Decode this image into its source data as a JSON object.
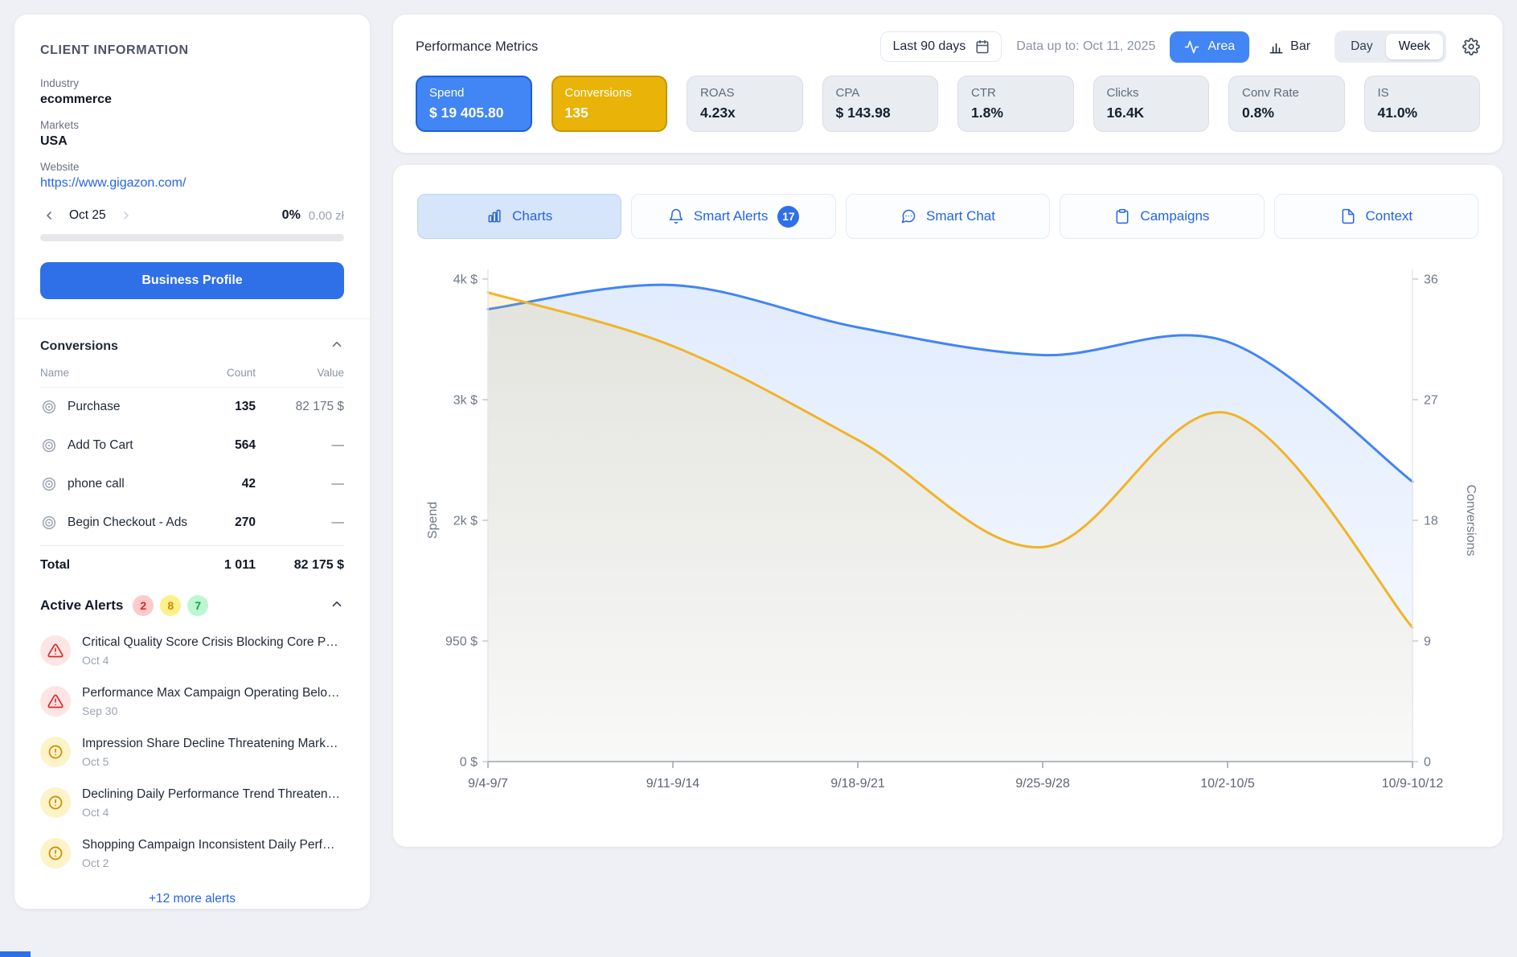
{
  "sidebar": {
    "title": "CLIENT INFORMATION",
    "fields": [
      {
        "label": "Industry",
        "value": "ecommerce",
        "link": false
      },
      {
        "label": "Markets",
        "value": "USA",
        "link": false
      },
      {
        "label": "Website",
        "value": "https://www.gigazon.com/",
        "link": true
      }
    ],
    "date_nav": {
      "label": "Oct 25",
      "percent": "0%",
      "amount": "0.00 zł"
    },
    "business_profile_label": "Business Profile",
    "conversions": {
      "title": "Conversions",
      "columns": {
        "name": "Name",
        "count": "Count",
        "value": "Value"
      },
      "rows": [
        {
          "name": "Purchase",
          "count": "135",
          "value": "82 175 $"
        },
        {
          "name": "Add To Cart",
          "count": "564",
          "value": "—"
        },
        {
          "name": "phone call",
          "count": "42",
          "value": "—"
        },
        {
          "name": "Begin Checkout - Ads",
          "count": "270",
          "value": "—"
        }
      ],
      "total": {
        "name": "Total",
        "count": "1 011",
        "value": "82 175 $"
      }
    },
    "active_alerts": {
      "title": "Active Alerts",
      "badges": [
        {
          "count": "2",
          "type": "critical"
        },
        {
          "count": "8",
          "type": "warning"
        },
        {
          "count": "7",
          "type": "positive"
        }
      ],
      "items": [
        {
          "severity": "critical",
          "title": "Critical Quality Score Crisis Blocking Core P…",
          "date": "Oct 4"
        },
        {
          "severity": "critical",
          "title": "Performance Max Campaign Operating Belo…",
          "date": "Sep 30"
        },
        {
          "severity": "warning",
          "title": "Impression Share Decline Threatening Mark…",
          "date": "Oct 5"
        },
        {
          "severity": "warning",
          "title": "Declining Daily Performance Trend Threaten…",
          "date": "Oct 4"
        },
        {
          "severity": "warning",
          "title": "Shopping Campaign Inconsistent Daily Perf…",
          "date": "Oct 2"
        }
      ],
      "more_label": "+12 more alerts"
    }
  },
  "header": {
    "title": "Performance Metrics",
    "date_range": "Last 90 days",
    "data_up_to": "Data up to: Oct 11, 2025",
    "area_label": "Area",
    "bar_label": "Bar",
    "day_label": "Day",
    "week_label": "Week",
    "active_chart_type": "Area",
    "active_granularity": "Week"
  },
  "metrics": [
    {
      "label": "Spend",
      "value": "$ 19 405.80",
      "state": "sel-blue"
    },
    {
      "label": "Conversions",
      "value": "135",
      "state": "sel-yellow"
    },
    {
      "label": "ROAS",
      "value": "4.23x",
      "state": ""
    },
    {
      "label": "CPA",
      "value": "$ 143.98",
      "state": ""
    },
    {
      "label": "CTR",
      "value": "1.8%",
      "state": ""
    },
    {
      "label": "Clicks",
      "value": "16.4K",
      "state": ""
    },
    {
      "label": "Conv Rate",
      "value": "0.8%",
      "state": ""
    },
    {
      "label": "IS",
      "value": "41.0%",
      "state": ""
    }
  ],
  "tabs": [
    {
      "label": "Charts",
      "icon": "bar-chart",
      "active": true,
      "badge": null
    },
    {
      "label": "Smart Alerts",
      "icon": "bell",
      "active": false,
      "badge": "17"
    },
    {
      "label": "Smart Chat",
      "icon": "chat",
      "active": false,
      "badge": null
    },
    {
      "label": "Campaigns",
      "icon": "clipboard",
      "active": false,
      "badge": null
    },
    {
      "label": "Context",
      "icon": "file",
      "active": false,
      "badge": null
    }
  ],
  "chart_data": {
    "type": "area",
    "x_labels": [
      "9/4-9/7",
      "9/11-9/14",
      "9/18-9/21",
      "9/25-9/28",
      "10/2-10/5",
      "10/9-10/12"
    ],
    "left_axis": {
      "label": "Spend",
      "tick_labels": [
        "0 $",
        "950 $",
        "2k $",
        "3k $",
        "4k $"
      ],
      "tick_values": [
        0,
        950,
        2000,
        3000,
        4000
      ]
    },
    "right_axis": {
      "label": "Conversions",
      "tick_labels": [
        "0",
        "9",
        "18",
        "27",
        "36"
      ],
      "max": 36
    },
    "series": [
      {
        "name": "Spend",
        "axis": "left",
        "color": "#4285f4",
        "fill_top": "rgba(66,133,244,0.16)",
        "fill_bottom": "rgba(66,133,244,0.03)",
        "values": [
          3750,
          3950,
          3600,
          3370,
          3480,
          2320
        ]
      },
      {
        "name": "Conversions",
        "axis": "right",
        "color": "#f0b429",
        "fill_top": "rgba(240,180,41,0.15)",
        "fill_bottom": "rgba(240,180,41,0.03)",
        "values": [
          35,
          31,
          24,
          16,
          26,
          10
        ]
      }
    ],
    "grid": false,
    "legend": "none"
  },
  "colors": {
    "accent_blue": "#2f6fe8",
    "chart_blue": "#4285f4",
    "chart_yellow": "#f0b429",
    "selected_yellow": "#eab308",
    "link_blue": "#2563eb"
  }
}
